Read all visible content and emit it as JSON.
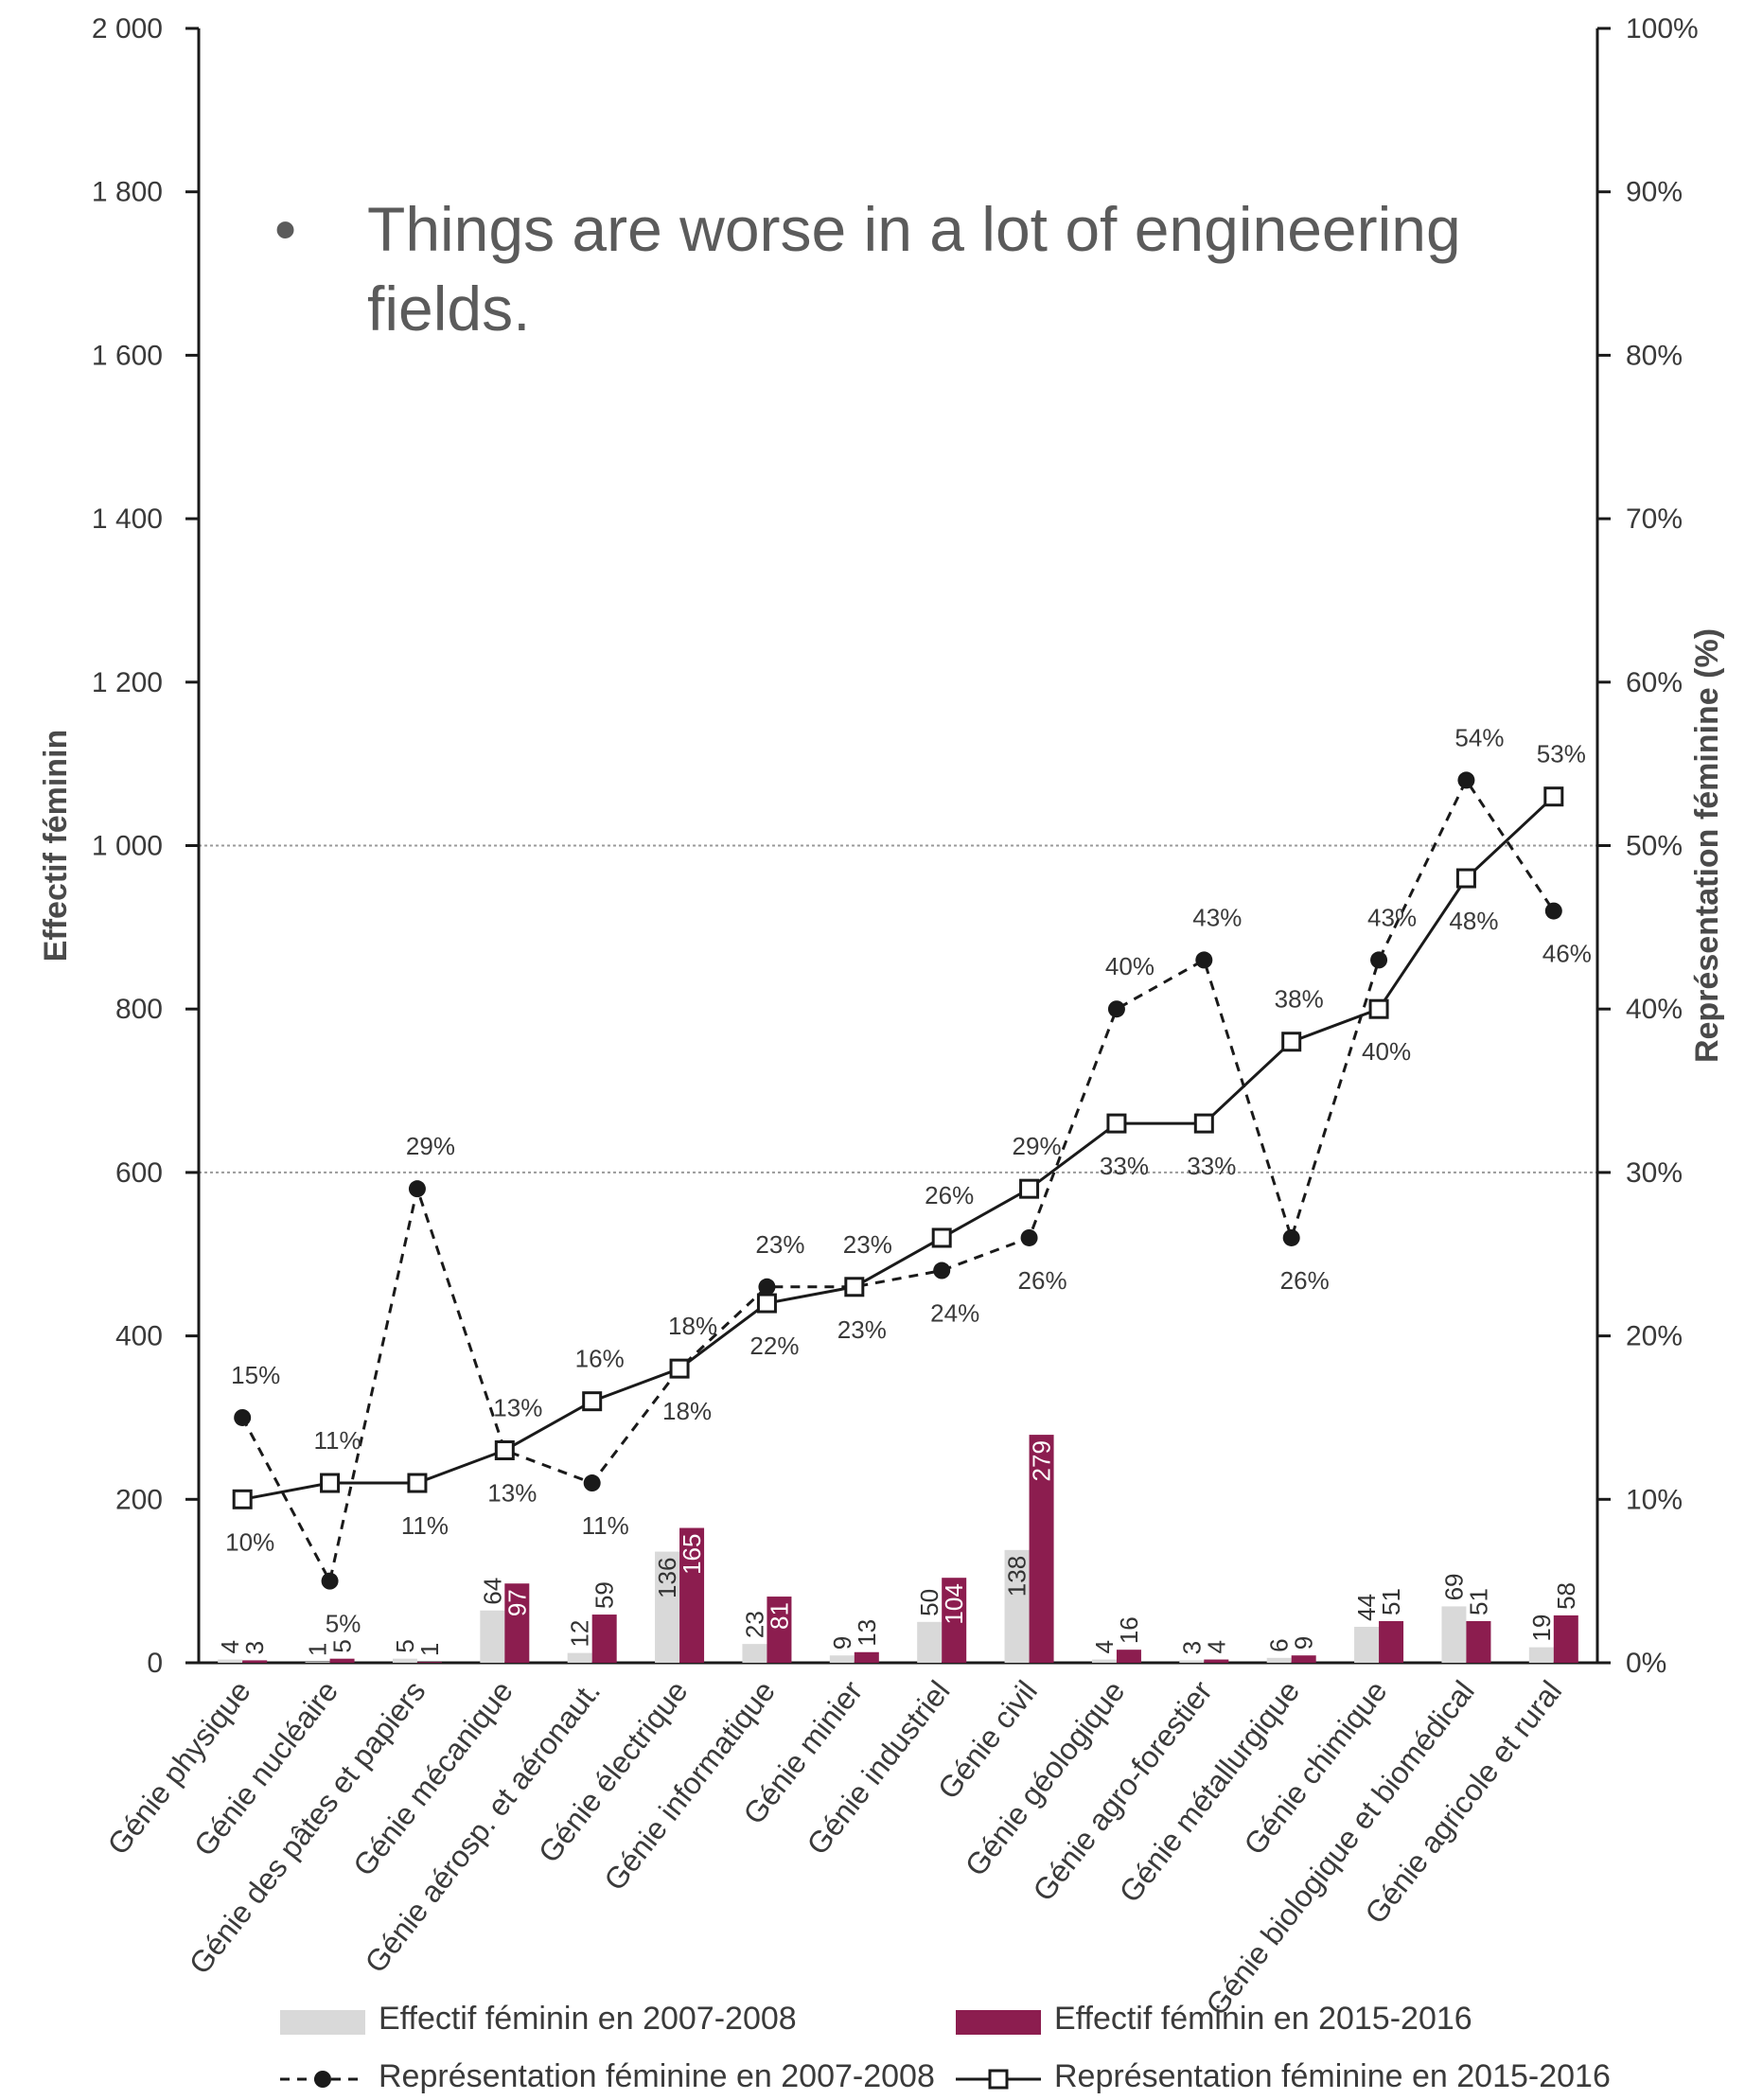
{
  "slide": {
    "bullet": "•",
    "text": "Things are worse in a lot of engineering fields."
  },
  "chart_data": {
    "type": "bar",
    "categories": [
      "Génie physique",
      "Génie nucléaire",
      "Génie des pâtes et papiers",
      "Génie mécanique",
      "Génie aérosp. et aéronaut.",
      "Génie électrique",
      "Génie informatique",
      "Génie minier",
      "Génie industriel",
      "Génie civil",
      "Génie géologique",
      "Génie agro-forestier",
      "Génie métallurgique",
      "Génie chimique",
      "Génie biologique et biomédical",
      "Génie agricole et rural"
    ],
    "series": [
      {
        "name": "Effectif féminin en 2007-2008",
        "kind": "bar",
        "axis": "left",
        "color": "#d9d9d9",
        "values": [
          4,
          1,
          5,
          64,
          12,
          136,
          23,
          9,
          50,
          138,
          4,
          3,
          6,
          44,
          69,
          19
        ]
      },
      {
        "name": "Effectif féminin en 2015-2016",
        "kind": "bar",
        "axis": "left",
        "color": "#8c1d4f",
        "values": [
          3,
          5,
          1,
          97,
          59,
          165,
          81,
          13,
          104,
          279,
          16,
          4,
          9,
          51,
          51,
          58
        ]
      },
      {
        "name": "Représentation féminine en 2007-2008",
        "kind": "line",
        "style": "dashed",
        "marker": "filled-circle",
        "axis": "right",
        "values": [
          15,
          5,
          29,
          13,
          11,
          18,
          23,
          23,
          24,
          26,
          40,
          43,
          26,
          43,
          54,
          46
        ],
        "labels": [
          "15%",
          "5%",
          "29%",
          "13%",
          "11%",
          "18%",
          "23%",
          "23%",
          "24%",
          "26%",
          "40%",
          "43%",
          "26%",
          "43%",
          "54%",
          "46%"
        ]
      },
      {
        "name": "Représentation féminine en 2015-2016",
        "kind": "line",
        "style": "solid",
        "marker": "open-square",
        "axis": "right",
        "values": [
          10,
          11,
          11,
          13,
          16,
          18,
          22,
          23,
          26,
          29,
          33,
          33,
          38,
          40,
          48,
          53
        ],
        "labels": [
          "10%",
          "11%",
          "11%",
          "13%",
          "16%",
          "18%",
          "22%",
          "23%",
          "26%",
          "29%",
          "33%",
          "33%",
          "38%",
          "40%",
          "48%",
          "53%"
        ]
      }
    ],
    "ylabel": "Effectif féminin",
    "y2label": "Représentation féminine (%)",
    "ylim": [
      0,
      2000
    ],
    "y2lim": [
      0,
      100
    ],
    "yticks": [
      "0",
      "200",
      "400",
      "600",
      "800",
      "1 000",
      "1 200",
      "1 400",
      "1 600",
      "1 800",
      "2 000"
    ],
    "y2ticks": [
      "0%",
      "10%",
      "20%",
      "30%",
      "40%",
      "50%",
      "60%",
      "70%",
      "80%",
      "90%",
      "100%"
    ],
    "reference_lines_pct": [
      30,
      50
    ],
    "legend_position": "bottom",
    "colors": {
      "bar2007": "#d9d9d9",
      "bar2015": "#8c1d4f",
      "line": "#1a1a1a",
      "axis": "#1a1a1a",
      "text": "#3a3a3a"
    }
  }
}
